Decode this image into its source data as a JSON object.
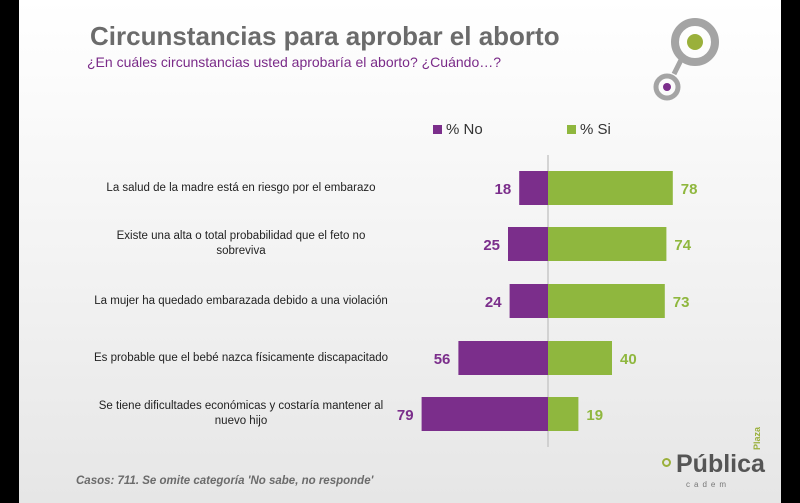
{
  "title": "Circunstancias para aprobar el aborto",
  "subtitle": "¿En cuáles circunstancias usted aprobaría el aborto? ¿Cuándo…?",
  "footnote": "Casos: 711. Se omite categoría 'No sabe, no responde'",
  "brand": {
    "name": "Pública",
    "plaza": "Plaza",
    "sub": "cadem"
  },
  "colors": {
    "no": "#7b2e8b",
    "si": "#8fb73e",
    "axis": "#c8c8c8"
  },
  "legend": [
    {
      "label": "% No",
      "color": "#7b2e8b"
    },
    {
      "label": "% Si",
      "color": "#8fb73e"
    }
  ],
  "chart_data": {
    "type": "bar",
    "orientation": "horizontal-diverging",
    "categories": [
      [
        "La salud de la madre está en riesgo por el embarazo"
      ],
      [
        "Existe una alta o total probabilidad que el feto no",
        "sobreviva"
      ],
      [
        "La mujer ha quedado embarazada debido a una violación"
      ],
      [
        "Es probable que el bebé nazca físicamente discapacitado"
      ],
      [
        "Se tiene dificultades económicas y costaría mantener al",
        "nuevo hijo"
      ]
    ],
    "series": [
      {
        "name": "% No",
        "values": [
          18,
          25,
          24,
          56,
          79
        ]
      },
      {
        "name": "% Si",
        "values": [
          78,
          74,
          73,
          40,
          19
        ]
      }
    ]
  }
}
